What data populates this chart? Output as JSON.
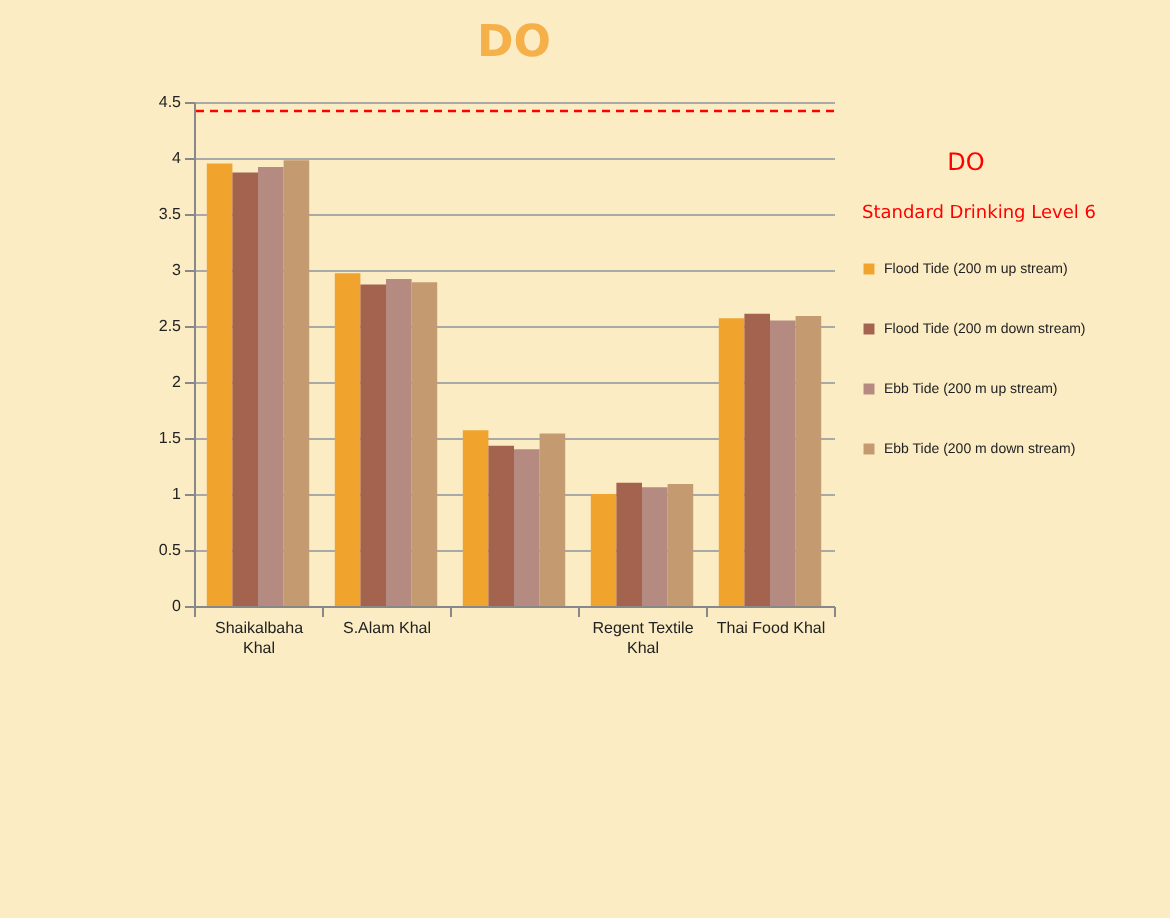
{
  "chart_data": {
    "type": "bar",
    "title": "DO",
    "categories": [
      "Shaikalbaha Khal",
      "S.Alam Khal",
      null,
      "Regent Textile Khal",
      "Thai Food Khal"
    ],
    "series": [
      {
        "name": "Flood Tide (200 m up stream)",
        "color": "#f0a42e",
        "values": [
          3.95,
          2.97,
          1.57,
          1.0,
          2.57
        ]
      },
      {
        "name": "Flood  Tide  (200 m down stream)",
        "color": "#a3634e",
        "values": [
          3.87,
          2.87,
          1.43,
          1.1,
          2.61
        ]
      },
      {
        "name": "Ebb Tide (200 m up stream)",
        "color": "#b58a80",
        "values": [
          3.92,
          2.92,
          1.4,
          1.06,
          2.55
        ]
      },
      {
        "name": "Ebb Tide  (200 m down stream)",
        "color": "#c49a70",
        "values": [
          3.98,
          2.89,
          1.54,
          1.09,
          2.59
        ]
      }
    ],
    "ylim": [
      0,
      4.5
    ],
    "yticks": [
      0,
      0.5,
      1,
      1.5,
      2,
      2.5,
      3,
      3.5,
      4,
      4.5
    ],
    "grid": "y",
    "legend": "right",
    "legend_title": "DO",
    "ref_lines": [
      {
        "axis": "y",
        "value": 4.42,
        "label": "Standard Drinking Level  6",
        "color": "#ff0000",
        "line_style": "dashed"
      }
    ]
  }
}
